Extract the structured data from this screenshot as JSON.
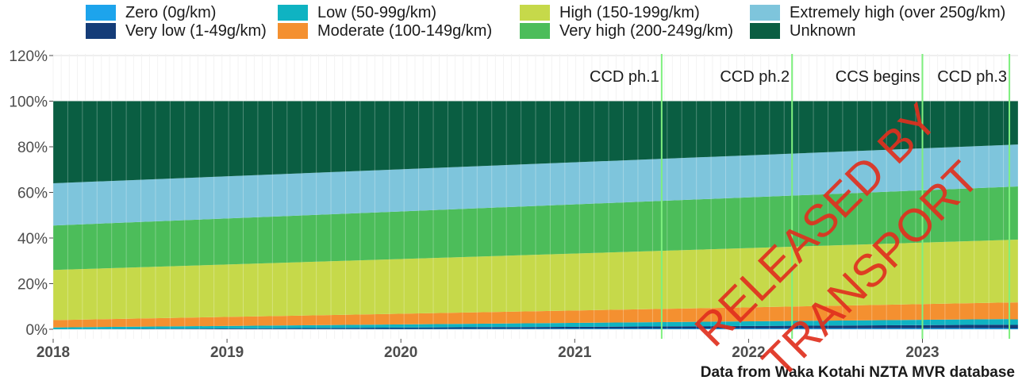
{
  "chart_data": {
    "type": "area",
    "stacked": true,
    "percent": true,
    "x": [
      2018.0,
      2023.55
    ],
    "xlim": [
      2018.0,
      2023.55
    ],
    "x_ticks": [
      "2018",
      "2019",
      "2020",
      "2021",
      "2022",
      "2023"
    ],
    "ylim": [
      0,
      120
    ],
    "y_ticks": [
      "0%",
      "20%",
      "40%",
      "60%",
      "80%",
      "100%",
      "120%"
    ],
    "series": [
      {
        "name": "Zero (0g/km)",
        "color": "#1da4ec",
        "values": [
          0.0,
          0.5
        ]
      },
      {
        "name": "Very low (1-49g/km)",
        "color": "#143c78",
        "values": [
          0.0,
          1.5
        ]
      },
      {
        "name": "Low (50-99g/km)",
        "color": "#0fb3c2",
        "values": [
          0.8,
          2.5
        ]
      },
      {
        "name": "Moderate (100-149g/km)",
        "color": "#f49030",
        "values": [
          3.2,
          7.3
        ]
      },
      {
        "name": "High (150-199g/km)",
        "color": "#c6d94a",
        "values": [
          22.0,
          27.5
        ]
      },
      {
        "name": "Very high (200-249g/km)",
        "color": "#4cbd5a",
        "values": [
          19.5,
          23.3
        ]
      },
      {
        "name": "Extremely high (over 250g/km)",
        "color": "#7ec5dc",
        "values": [
          18.5,
          18.4
        ]
      },
      {
        "name": "Unknown",
        "color": "#0a5e42",
        "values": [
          36.0,
          19.0
        ]
      }
    ],
    "events": [
      {
        "label": "CCD ph.1",
        "x": 2021.5
      },
      {
        "label": "CCD ph.2",
        "x": 2022.25
      },
      {
        "label": "CCS begins",
        "x": 2023.0
      },
      {
        "label": "CCD ph.3",
        "x": 2023.5
      }
    ],
    "event_line_color": "#7ff07f",
    "grid": true,
    "legend_position": "top",
    "source_note": "Data from Waka Kotahi NZTA MVR database",
    "watermark_lines": [
      "RELEASED BY",
      "TRANSPORT"
    ]
  }
}
